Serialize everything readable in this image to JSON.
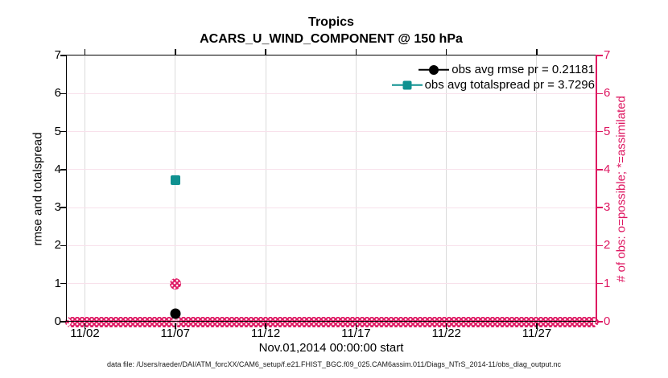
{
  "title": {
    "line1": "Tropics",
    "line2": "ACARS_U_WIND_COMPONENT @ 150 hPa"
  },
  "footer": "data file: /Users/raeder/DAI/ATM_forcXX/CAM6_setup/f.e21.FHIST_BGC.f09_025.CAM6assim.011/Diags_NTrS_2014-11/obs_diag_output.nc",
  "colors": {
    "accent_pink": "#DE1761",
    "grid_pink": "#F8E1EB",
    "grid_gray": "#DBDBDB",
    "teal": "#0F9190",
    "black": "#000000"
  },
  "chart_data": {
    "type": "scatter",
    "title": "Tropics",
    "subtitle": "ACARS_U_WIND_COMPONENT @ 150 hPa",
    "xlabel": "Nov.01,2014 00:00:00 start",
    "ylabel_left": "rmse and totalspread",
    "ylabel_right": "# of obs: o=possible; *=assimilated",
    "grid": true,
    "legend_position": "top-right-inside",
    "legend_box": false,
    "x_axis": {
      "start_label": "Nov.01,2014 00:00:00",
      "range_days": [
        0,
        29.25
      ],
      "tick_days": [
        1,
        6,
        11,
        16,
        21,
        26
      ],
      "tick_labels": [
        "11/02",
        "11/07",
        "11/12",
        "11/17",
        "11/22",
        "11/27"
      ]
    },
    "y_axis": {
      "range": [
        0,
        7
      ],
      "ticks": [
        0,
        1,
        2,
        3,
        4,
        5,
        6,
        7
      ],
      "right_range": [
        0,
        7
      ],
      "right_ticks": [
        0,
        1,
        2,
        3,
        4,
        5,
        6,
        7
      ]
    },
    "legend": [
      {
        "label": "obs avg rmse pr = 0.21181",
        "marker": "circle",
        "color": "#000000"
      },
      {
        "label": "obs avg totalspread pr = 3.7296",
        "marker": "square",
        "color": "#0F9190"
      }
    ],
    "series": [
      {
        "name": "obs-possible-count",
        "marker": "speckled-circle",
        "color": "#DE1761",
        "axis": "right",
        "points": [
          {
            "day": 6,
            "value": 1
          }
        ]
      },
      {
        "name": "rmse",
        "marker": "circle",
        "color": "#000000",
        "axis": "left",
        "points": [
          {
            "day": 6,
            "value": 0.21181
          }
        ]
      },
      {
        "name": "totalspread",
        "marker": "square",
        "color": "#0F9190",
        "axis": "left",
        "points": [
          {
            "day": 6,
            "value": 3.7296
          }
        ]
      }
    ],
    "obs_zero_band": {
      "value": 0,
      "from_day": 0,
      "to_day": 29.25,
      "note": "overlapping o and * markers at count 0 for every other time"
    }
  }
}
